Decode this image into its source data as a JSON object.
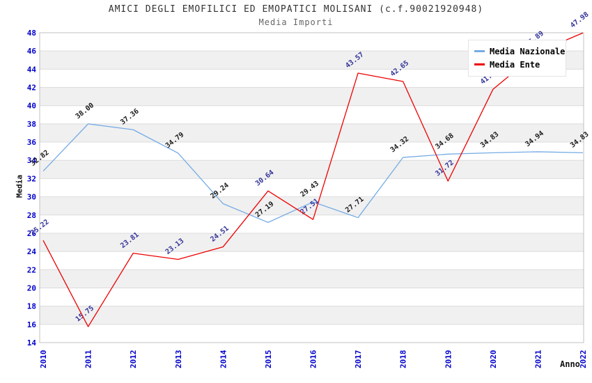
{
  "title": "AMICI DEGLI EMOFILICI ED EMOPATICI MOLISANI (c.f.90021920948)",
  "subtitle": "Media Importi",
  "chart_data": {
    "type": "line",
    "x": [
      2010,
      2011,
      2012,
      2013,
      2014,
      2015,
      2016,
      2017,
      2018,
      2019,
      2020,
      2021,
      2022
    ],
    "xlabel": "Anno",
    "ylabel": "Media",
    "ylim": [
      14,
      48
    ],
    "ytick_step": 2,
    "grid": "horizontal-lines-with-alternating-bands",
    "legend_position": "top-right",
    "series": [
      {
        "name": "Media Nazionale",
        "color": "#76ace4",
        "label_color": "#1a1a1a",
        "values": [
          32.82,
          38.0,
          37.36,
          34.79,
          29.24,
          27.19,
          29.43,
          27.71,
          34.32,
          34.68,
          34.83,
          34.94,
          34.83
        ]
      },
      {
        "name": "Media Ente",
        "color": "#ee0000",
        "label_color": "#333399",
        "values": [
          25.22,
          15.75,
          23.81,
          23.13,
          24.51,
          30.64,
          27.51,
          43.57,
          42.65,
          31.72,
          41.79,
          45.89,
          47.98
        ]
      }
    ]
  },
  "colors": {
    "band": "#f0f0f0",
    "gridline": "#dcdcdc",
    "plot_border": "#c0c0c0",
    "tick_label": "#0000cc",
    "title": "#333333",
    "subtitle": "#666666"
  }
}
